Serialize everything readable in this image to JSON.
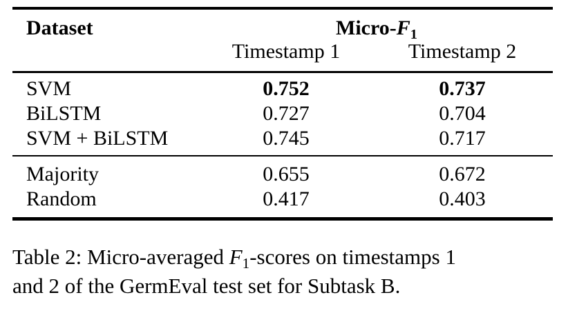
{
  "table": {
    "header": {
      "col1": "Dataset",
      "group_title": {
        "prefix": "Micro-",
        "f": "F",
        "sub": "1"
      },
      "subcols": [
        "Timestamp 1",
        "Timestamp 2"
      ]
    },
    "groups": [
      {
        "rows": [
          {
            "label": "SVM",
            "t1": "0.752",
            "t2": "0.737",
            "bold": true
          },
          {
            "label": "BiLSTM",
            "t1": "0.727",
            "t2": "0.704",
            "bold": false
          },
          {
            "label": "SVM + BiLSTM",
            "t1": "0.745",
            "t2": "0.717",
            "bold": false
          }
        ]
      },
      {
        "rows": [
          {
            "label": "Majority",
            "t1": "0.655",
            "t2": "0.672",
            "bold": false
          },
          {
            "label": "Random",
            "t1": "0.417",
            "t2": "0.403",
            "bold": false
          }
        ]
      }
    ]
  },
  "caption": {
    "line1_pre": "Table 2: Micro-averaged ",
    "f": "F",
    "sub": "1",
    "line1_post": "-scores on timestamps 1",
    "line2": "and 2 of the GermEval test set for Subtask B."
  },
  "colors": {
    "text": "#000000",
    "rule": "#000000",
    "background": "#ffffff"
  }
}
